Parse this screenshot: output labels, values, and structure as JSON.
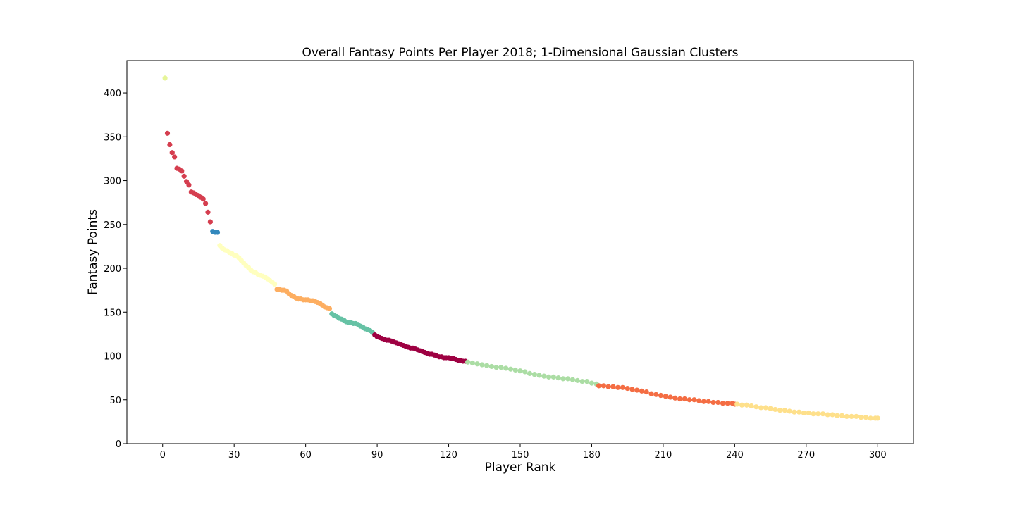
{
  "chart_data": {
    "type": "scatter",
    "title": "Overall Fantasy Points Per Player 2018; 1-Dimensional Gaussian Clusters",
    "xlabel": "Player Rank",
    "ylabel": "Fantasy Points",
    "xlim": [
      -15,
      315
    ],
    "ylim": [
      0,
      437
    ],
    "xticks": [
      0,
      30,
      60,
      90,
      120,
      150,
      180,
      210,
      240,
      270,
      300
    ],
    "yticks": [
      0,
      50,
      100,
      150,
      200,
      250,
      300,
      350,
      400
    ],
    "grid": false,
    "clusters": [
      {
        "color": "#e6f598",
        "points": [
          [
            1,
            417
          ]
        ]
      },
      {
        "color": "#d53e4f",
        "points": [
          [
            2,
            354
          ],
          [
            3,
            341
          ],
          [
            4,
            332
          ],
          [
            5,
            327
          ],
          [
            6,
            314
          ],
          [
            7,
            313
          ],
          [
            8,
            311
          ],
          [
            9,
            305
          ],
          [
            10,
            299
          ],
          [
            11,
            295
          ],
          [
            12,
            287
          ],
          [
            13,
            286
          ],
          [
            14,
            284
          ],
          [
            15,
            283
          ],
          [
            16,
            281
          ],
          [
            17,
            279
          ],
          [
            18,
            274
          ],
          [
            19,
            264
          ],
          [
            20,
            253
          ]
        ]
      },
      {
        "color": "#3288bd",
        "points": [
          [
            21,
            242
          ],
          [
            22,
            241
          ],
          [
            23,
            241
          ]
        ]
      },
      {
        "color": "#ffffbf",
        "points": [
          [
            24,
            226
          ],
          [
            25,
            223
          ],
          [
            26,
            221
          ],
          [
            27,
            220
          ],
          [
            28,
            218
          ],
          [
            29,
            217
          ],
          [
            30,
            215
          ],
          [
            31,
            214
          ],
          [
            32,
            212
          ],
          [
            33,
            209
          ],
          [
            34,
            206
          ],
          [
            35,
            203
          ],
          [
            36,
            201
          ],
          [
            37,
            198
          ],
          [
            38,
            196
          ],
          [
            39,
            195
          ],
          [
            40,
            193
          ],
          [
            41,
            192
          ],
          [
            42,
            191
          ],
          [
            43,
            190
          ],
          [
            44,
            188
          ],
          [
            45,
            186
          ],
          [
            46,
            184
          ],
          [
            47,
            182
          ]
        ]
      },
      {
        "color": "#fdae61",
        "points": [
          [
            48,
            176
          ],
          [
            49,
            176
          ],
          [
            50,
            175
          ],
          [
            51,
            175
          ],
          [
            52,
            174
          ],
          [
            53,
            171
          ],
          [
            54,
            169
          ],
          [
            55,
            168
          ],
          [
            56,
            166
          ],
          [
            57,
            165
          ],
          [
            58,
            165
          ],
          [
            59,
            164
          ],
          [
            60,
            164
          ],
          [
            61,
            164
          ],
          [
            62,
            163
          ],
          [
            63,
            163
          ],
          [
            64,
            162
          ],
          [
            65,
            161
          ],
          [
            66,
            160
          ],
          [
            67,
            158
          ],
          [
            68,
            156
          ],
          [
            69,
            155
          ],
          [
            70,
            154
          ]
        ]
      },
      {
        "color": "#66c2a5",
        "points": [
          [
            71,
            148
          ],
          [
            72,
            146
          ],
          [
            73,
            145
          ],
          [
            74,
            143
          ],
          [
            75,
            142
          ],
          [
            76,
            141
          ],
          [
            77,
            139
          ],
          [
            78,
            138
          ],
          [
            79,
            138
          ],
          [
            80,
            137
          ],
          [
            81,
            137
          ],
          [
            82,
            136
          ],
          [
            83,
            134
          ],
          [
            84,
            133
          ],
          [
            85,
            131
          ],
          [
            86,
            130
          ],
          [
            87,
            129
          ],
          [
            88,
            127
          ]
        ]
      },
      {
        "color": "#9e0142",
        "points": [
          [
            89,
            124
          ],
          [
            90,
            122
          ],
          [
            91,
            121
          ],
          [
            92,
            120
          ],
          [
            93,
            119
          ],
          [
            94,
            118
          ],
          [
            95,
            118
          ],
          [
            96,
            117
          ],
          [
            97,
            116
          ],
          [
            98,
            115
          ],
          [
            99,
            114
          ],
          [
            100,
            113
          ],
          [
            101,
            112
          ],
          [
            102,
            111
          ],
          [
            103,
            110
          ],
          [
            104,
            109
          ],
          [
            105,
            109
          ],
          [
            106,
            108
          ],
          [
            107,
            107
          ],
          [
            108,
            106
          ],
          [
            109,
            105
          ],
          [
            110,
            104
          ],
          [
            111,
            103
          ],
          [
            112,
            102
          ],
          [
            113,
            102
          ],
          [
            114,
            101
          ],
          [
            115,
            100
          ],
          [
            116,
            99
          ],
          [
            117,
            99
          ],
          [
            118,
            98
          ],
          [
            119,
            98
          ],
          [
            120,
            98
          ],
          [
            121,
            97
          ],
          [
            122,
            97
          ],
          [
            123,
            96
          ],
          [
            124,
            95
          ],
          [
            125,
            95
          ],
          [
            126,
            94
          ],
          [
            127,
            94
          ]
        ]
      },
      {
        "color": "#abdda4",
        "points": [
          [
            128,
            93
          ],
          [
            130,
            92
          ],
          [
            132,
            91
          ],
          [
            134,
            90
          ],
          [
            136,
            89
          ],
          [
            138,
            88
          ],
          [
            140,
            87
          ],
          [
            142,
            87
          ],
          [
            144,
            86
          ],
          [
            146,
            85
          ],
          [
            148,
            84
          ],
          [
            150,
            83
          ],
          [
            152,
            82
          ],
          [
            154,
            80
          ],
          [
            156,
            79
          ],
          [
            158,
            78
          ],
          [
            160,
            77
          ],
          [
            162,
            76
          ],
          [
            164,
            76
          ],
          [
            166,
            75
          ],
          [
            168,
            74
          ],
          [
            170,
            74
          ],
          [
            172,
            73
          ],
          [
            174,
            72
          ],
          [
            176,
            71
          ],
          [
            178,
            71
          ],
          [
            180,
            69
          ],
          [
            182,
            68
          ]
        ]
      },
      {
        "color": "#f46d43",
        "points": [
          [
            183,
            66
          ],
          [
            185,
            66
          ],
          [
            187,
            65
          ],
          [
            189,
            65
          ],
          [
            191,
            64
          ],
          [
            193,
            64
          ],
          [
            195,
            63
          ],
          [
            197,
            62
          ],
          [
            199,
            61
          ],
          [
            201,
            60
          ],
          [
            203,
            59
          ],
          [
            205,
            57
          ],
          [
            207,
            56
          ],
          [
            209,
            55
          ],
          [
            211,
            54
          ],
          [
            213,
            53
          ],
          [
            215,
            52
          ],
          [
            217,
            51
          ],
          [
            219,
            51
          ],
          [
            221,
            50
          ],
          [
            223,
            50
          ],
          [
            225,
            49
          ],
          [
            227,
            48
          ],
          [
            229,
            48
          ],
          [
            231,
            47
          ],
          [
            233,
            47
          ],
          [
            235,
            46
          ],
          [
            237,
            46
          ],
          [
            239,
            46
          ],
          [
            240,
            45
          ]
        ]
      },
      {
        "color": "#fee08b",
        "points": [
          [
            241,
            45
          ],
          [
            243,
            44
          ],
          [
            245,
            44
          ],
          [
            247,
            43
          ],
          [
            249,
            42
          ],
          [
            251,
            41
          ],
          [
            253,
            41
          ],
          [
            255,
            40
          ],
          [
            257,
            39
          ],
          [
            259,
            38
          ],
          [
            261,
            38
          ],
          [
            263,
            37
          ],
          [
            265,
            36
          ],
          [
            267,
            36
          ],
          [
            269,
            35
          ],
          [
            271,
            35
          ],
          [
            273,
            34
          ],
          [
            275,
            34
          ],
          [
            277,
            34
          ],
          [
            279,
            33
          ],
          [
            281,
            33
          ],
          [
            283,
            32
          ],
          [
            285,
            32
          ],
          [
            287,
            31
          ],
          [
            289,
            31
          ],
          [
            291,
            31
          ],
          [
            293,
            30
          ],
          [
            295,
            30
          ],
          [
            297,
            29
          ],
          [
            299,
            29
          ],
          [
            300,
            29
          ]
        ]
      }
    ]
  }
}
